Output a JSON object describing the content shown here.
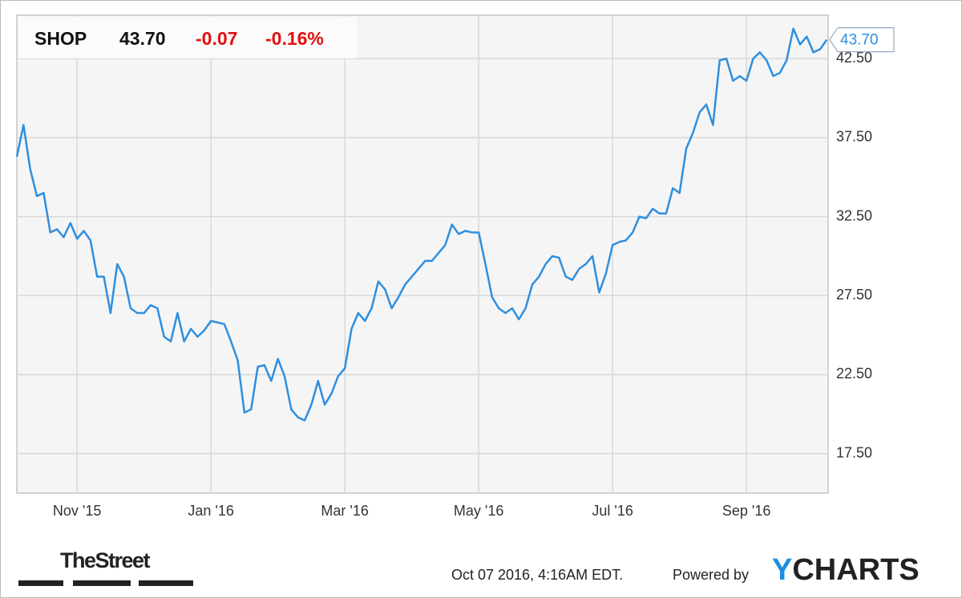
{
  "quote": {
    "symbol": "SHOP",
    "price": "43.70",
    "change": "-0.07",
    "change_pct": "-0.16%"
  },
  "chart_data": {
    "type": "line",
    "categories": [
      null,
      null,
      null,
      null,
      null,
      null,
      null,
      null,
      null,
      "Nov '15",
      null,
      null,
      null,
      null,
      null,
      null,
      null,
      null,
      null,
      null,
      null,
      null,
      null,
      null,
      null,
      null,
      null,
      null,
      null,
      "Jan '16",
      null,
      null,
      null,
      null,
      null,
      null,
      null,
      null,
      null,
      null,
      null,
      null,
      null,
      null,
      null,
      null,
      null,
      null,
      null,
      "Mar '16",
      null,
      null,
      null,
      null,
      null,
      null,
      null,
      null,
      null,
      null,
      null,
      null,
      null,
      null,
      null,
      null,
      null,
      null,
      null,
      "May '16",
      null,
      null,
      null,
      null,
      null,
      null,
      null,
      null,
      null,
      null,
      null,
      null,
      null,
      null,
      null,
      null,
      null,
      null,
      null,
      "Jul '16",
      null,
      null,
      null,
      null,
      null,
      null,
      null,
      null,
      null,
      null,
      null,
      null,
      null,
      null,
      null,
      null,
      null,
      null,
      null,
      "Sep '16",
      null,
      null,
      null,
      null,
      null,
      null,
      null,
      null,
      null,
      null,
      null,
      null
    ],
    "values": [
      36.3,
      38.3,
      35.5,
      33.8,
      34.0,
      31.5,
      31.7,
      31.2,
      32.1,
      31.1,
      31.6,
      31.0,
      28.7,
      28.7,
      26.4,
      29.5,
      28.7,
      26.7,
      26.4,
      26.4,
      26.9,
      26.7,
      24.9,
      24.6,
      26.4,
      24.6,
      25.4,
      24.9,
      25.3,
      25.9,
      25.8,
      25.7,
      24.6,
      23.4,
      20.1,
      20.3,
      23.0,
      23.1,
      22.1,
      23.5,
      22.4,
      20.3,
      19.8,
      19.6,
      20.6,
      22.1,
      20.6,
      21.3,
      22.4,
      22.9,
      25.4,
      26.4,
      25.9,
      26.7,
      28.4,
      27.9,
      26.7,
      27.4,
      28.2,
      28.7,
      29.2,
      29.7,
      29.7,
      30.2,
      30.7,
      32.0,
      31.4,
      31.6,
      31.5,
      31.5,
      29.5,
      27.4,
      26.7,
      26.4,
      26.7,
      26.0,
      26.7,
      28.2,
      28.7,
      29.5,
      30.0,
      29.9,
      28.7,
      28.5,
      29.2,
      29.5,
      30.0,
      27.7,
      28.9,
      30.7,
      30.9,
      31.0,
      31.5,
      32.5,
      32.4,
      33.0,
      32.7,
      32.7,
      34.3,
      34.0,
      36.8,
      37.8,
      39.1,
      39.6,
      38.3,
      42.4,
      42.5,
      41.1,
      41.4,
      41.1,
      42.5,
      42.9,
      42.4,
      41.4,
      41.6,
      42.4,
      44.4,
      43.4,
      43.9,
      42.9,
      43.1,
      43.7
    ],
    "color": "#2e8fe0",
    "price_tag": {
      "value": 43.7,
      "label": "43.70"
    },
    "ylim": [
      15,
      45.25
    ],
    "yticks": [
      {
        "value": 17.5,
        "label": "17.50"
      },
      {
        "value": 22.5,
        "label": "22.50"
      },
      {
        "value": 27.5,
        "label": "27.50"
      },
      {
        "value": 32.5,
        "label": "32.50"
      },
      {
        "value": 37.5,
        "label": "37.50"
      },
      {
        "value": 42.5,
        "label": "42.50"
      }
    ],
    "grid": true
  },
  "footer": {
    "source": "TheStreet",
    "timestamp": "Oct 07 2016, 4:16AM EDT.",
    "powered": "Powered by",
    "brand": "YCHARTS"
  }
}
